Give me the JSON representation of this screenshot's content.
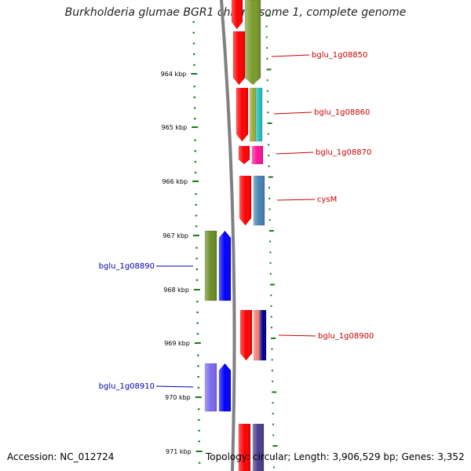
{
  "title": "Burkholderia glumae BGR1 chromosome 1, complete genome",
  "footer": {
    "accession": "Accession: NC_012724",
    "topology": "Topology: circular; Length: 3,906,529 bp; Genes: 3,352"
  },
  "ticks": [
    "964 kbp",
    "965 kbp",
    "966 kbp",
    "967 kbp",
    "968 kbp",
    "969 kbp",
    "970 kbp",
    "971 kbp"
  ],
  "colors": {
    "forward_label": "#cc0000",
    "reverse_label": "#0000aa",
    "backbone": "#808080",
    "cds_forward": "#ff0000",
    "cds_reverse": "#0000ff",
    "ruler": "#1a7a1a"
  },
  "genes": [
    {
      "label": "bglu_1g08850",
      "strand": "+",
      "feature_color": "#7a9a2a"
    },
    {
      "label": "bglu_1g08860",
      "strand": "+",
      "feature_color": "#22c0c0"
    },
    {
      "label": "bglu_1g08870",
      "strand": "+",
      "feature_color": "#ff1493"
    },
    {
      "label": "cysM",
      "strand": "+",
      "feature_color": "#4682b4"
    },
    {
      "label": "bglu_1g08890",
      "strand": "-",
      "feature_color": "#6b8e23"
    },
    {
      "label": "bglu_1g08900",
      "strand": "+",
      "feature_color": "#fa8072"
    },
    {
      "label": "bglu_1g08910",
      "strand": "-",
      "feature_color": "#7b68ee"
    }
  ]
}
